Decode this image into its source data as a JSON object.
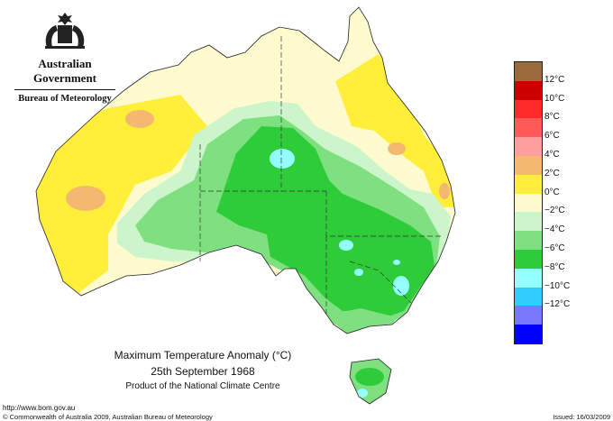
{
  "header": {
    "government": "Australian Government",
    "bureau": "Bureau of Meteorology"
  },
  "map": {
    "title": "Maximum Temperature Anomaly (°C)",
    "date": "25th September 1968",
    "product": "Product of the National Climate Centre",
    "region": "Australia"
  },
  "legend": [
    {
      "label": "",
      "color": "#9a6a3a"
    },
    {
      "label": "12°C",
      "color": "#cc0000"
    },
    {
      "label": "10°C",
      "color": "#ff2a2a"
    },
    {
      "label": "8°C",
      "color": "#ff5a5a"
    },
    {
      "label": "6°C",
      "color": "#ff9e9e"
    },
    {
      "label": "4°C",
      "color": "#f5b870"
    },
    {
      "label": "2°C",
      "color": "#ffef3a"
    },
    {
      "label": "0°C",
      "color": "#fffbcf"
    },
    {
      "label": "−2°C",
      "color": "#ccf5cc"
    },
    {
      "label": "−4°C",
      "color": "#7fe07f"
    },
    {
      "label": "−6°C",
      "color": "#2fcc3a"
    },
    {
      "label": "−8°C",
      "color": "#93ffff"
    },
    {
      "label": "−10°C",
      "color": "#33ccff"
    },
    {
      "label": "−12°C",
      "color": "#7777ff"
    },
    {
      "label": "",
      "color": "#0000ff"
    }
  ],
  "footer": {
    "url": "http://www.bom.gov.au",
    "copyright": "© Commonwealth of Australia 2009, Australian Bureau of Meteorology",
    "issued": "Issued: 16/03/2009"
  }
}
